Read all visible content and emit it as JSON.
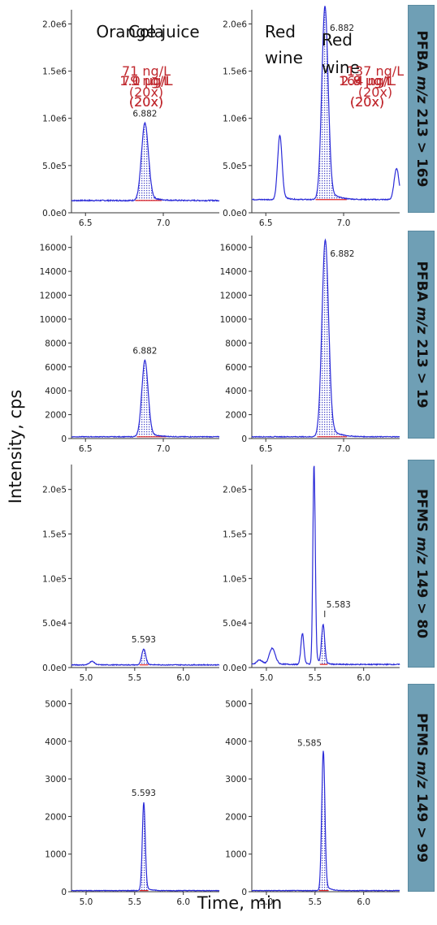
{
  "figure": {
    "y_label": "Intensity, cps",
    "x_label": "Time, min",
    "row_labels": [
      {
        "analyte": "PFBA",
        "mz": "m/z",
        "transition": "213 > 169"
      },
      {
        "analyte": "PFBA",
        "mz": "m/z",
        "transition": "213 > 19"
      },
      {
        "analyte": "PFMS",
        "mz": "m/z",
        "transition": "149 > 80"
      },
      {
        "analyte": "PFMS",
        "mz": "m/z",
        "transition": "149 > 99"
      }
    ],
    "colors": {
      "trace": "#2b2bd8",
      "fill": "#6b6bd0",
      "baseline": "#e02020",
      "annotation": "#c0282e",
      "band": "#6f9fb5"
    }
  },
  "chart_data": [
    {
      "type": "line",
      "sample": "Cola",
      "concentration": "1.0 µg/L",
      "dilution": "(20x)",
      "peak_label": "6.882",
      "xlim": [
        6.41,
        7.36
      ],
      "ylim": [
        0,
        2150000
      ],
      "yticks": [
        {
          "v": 0,
          "label": "0.0e0"
        },
        {
          "v": 500000,
          "label": "5.0e5"
        },
        {
          "v": 1000000,
          "label": "1.0e6"
        },
        {
          "v": 1500000,
          "label": "1.5e6"
        },
        {
          "v": 2000000,
          "label": "2.0e6"
        }
      ],
      "xticks": [
        {
          "v": 6.5,
          "label": "6.5"
        },
        {
          "v": 7.0,
          "label": "7.0"
        }
      ],
      "baseline": 130000,
      "noise": 12000,
      "peaks": [
        {
          "rt": 6.882,
          "height": 820000,
          "width": 0.022
        }
      ],
      "integration": [
        6.82,
        6.99
      ]
    },
    {
      "type": "line",
      "sample": "Red wine",
      "concentration": "2.9 µg/L",
      "dilution": "(20x)",
      "peak_label": "6.882",
      "xlim": [
        6.41,
        7.36
      ],
      "ylim": [
        0,
        2150000
      ],
      "yticks": [
        {
          "v": 0,
          "label": "0.0e0"
        },
        {
          "v": 500000,
          "label": "5.0e5"
        },
        {
          "v": 1000000,
          "label": "1.0e6"
        },
        {
          "v": 1500000,
          "label": "1.5e6"
        },
        {
          "v": 2000000,
          "label": "2.0e6"
        }
      ],
      "xticks": [
        {
          "v": 6.5,
          "label": "6.5"
        },
        {
          "v": 7.0,
          "label": "7.0"
        }
      ],
      "baseline": 140000,
      "noise": 10000,
      "peaks": [
        {
          "rt": 6.88,
          "height": 2050000,
          "width": 0.02
        },
        {
          "rt": 6.59,
          "height": 680000,
          "width": 0.014
        },
        {
          "rt": 7.34,
          "height": 330000,
          "width": 0.015
        }
      ],
      "integration": [
        6.82,
        7.02
      ]
    },
    {
      "type": "line",
      "concentration": "1.1 µg/L",
      "dilution": "(20x)",
      "peak_label": "6.882",
      "xlim": [
        6.41,
        7.36
      ],
      "ylim": [
        0,
        17000
      ],
      "yticks": [
        {
          "v": 0,
          "label": "0"
        },
        {
          "v": 2000,
          "label": "2000"
        },
        {
          "v": 4000,
          "label": "4000"
        },
        {
          "v": 6000,
          "label": "6000"
        },
        {
          "v": 8000,
          "label": "8000"
        },
        {
          "v": 10000,
          "label": "10000"
        },
        {
          "v": 12000,
          "label": "12000"
        },
        {
          "v": 14000,
          "label": "14000"
        },
        {
          "v": 16000,
          "label": "16000"
        }
      ],
      "xticks": [
        {
          "v": 6.5,
          "label": "6.5"
        },
        {
          "v": 7.0,
          "label": "7.0"
        }
      ],
      "baseline": 150,
      "noise": 60,
      "peaks": [
        {
          "rt": 6.882,
          "height": 6400,
          "width": 0.02
        }
      ],
      "integration": [
        6.83,
        7.02
      ]
    },
    {
      "type": "line",
      "concentration": "2.8 µg/L",
      "dilution": "(20x)",
      "peak_label": "6.882",
      "xlim": [
        6.41,
        7.36
      ],
      "ylim": [
        0,
        17000
      ],
      "yticks": [
        {
          "v": 0,
          "label": "0"
        },
        {
          "v": 2000,
          "label": "2000"
        },
        {
          "v": 4000,
          "label": "4000"
        },
        {
          "v": 6000,
          "label": "6000"
        },
        {
          "v": 8000,
          "label": "8000"
        },
        {
          "v": 10000,
          "label": "10000"
        },
        {
          "v": 12000,
          "label": "12000"
        },
        {
          "v": 14000,
          "label": "14000"
        },
        {
          "v": 16000,
          "label": "16000"
        }
      ],
      "xticks": [
        {
          "v": 6.5,
          "label": "6.5"
        },
        {
          "v": 7.0,
          "label": "7.0"
        }
      ],
      "baseline": 150,
      "noise": 60,
      "peaks": [
        {
          "rt": 6.882,
          "height": 16500,
          "width": 0.021
        }
      ],
      "integration": [
        6.83,
        7.02
      ]
    },
    {
      "type": "line",
      "sample": "Orange juice",
      "concentration": "79 ng/L",
      "dilution": "(20x)",
      "peak_label": "5.593",
      "xlim": [
        4.85,
        6.37
      ],
      "ylim": [
        0,
        228000
      ],
      "yticks": [
        {
          "v": 0,
          "label": "0.0e0"
        },
        {
          "v": 50000,
          "label": "5.0e4"
        },
        {
          "v": 100000,
          "label": "1.0e5"
        },
        {
          "v": 150000,
          "label": "1.5e5"
        },
        {
          "v": 200000,
          "label": "2.0e5"
        }
      ],
      "xticks": [
        {
          "v": 5.0,
          "label": "5.0"
        },
        {
          "v": 5.5,
          "label": "5.5"
        },
        {
          "v": 6.0,
          "label": "6.0"
        }
      ],
      "baseline": 3000,
      "noise": 900,
      "peaks": [
        {
          "rt": 5.593,
          "height": 18000,
          "width": 0.02
        },
        {
          "rt": 5.06,
          "height": 4000,
          "width": 0.025
        }
      ],
      "integration": [
        5.55,
        5.64
      ]
    },
    {
      "type": "line",
      "sample": "Red wine",
      "concentration": "164 ng/L",
      "dilution": "(20x)",
      "peak_label": "5.583",
      "xlim": [
        4.85,
        6.37
      ],
      "ylim": [
        0,
        228000
      ],
      "yticks": [
        {
          "v": 0,
          "label": "0.0e0"
        },
        {
          "v": 50000,
          "label": "5.0e4"
        },
        {
          "v": 100000,
          "label": "1.0e5"
        },
        {
          "v": 150000,
          "label": "1.5e5"
        },
        {
          "v": 200000,
          "label": "2.0e5"
        }
      ],
      "xticks": [
        {
          "v": 5.0,
          "label": "5.0"
        },
        {
          "v": 5.5,
          "label": "5.5"
        },
        {
          "v": 6.0,
          "label": "6.0"
        }
      ],
      "baseline": 3500,
      "noise": 1100,
      "peaks": [
        {
          "rt": 5.49,
          "height": 225000,
          "width": 0.012
        },
        {
          "rt": 5.583,
          "height": 44000,
          "width": 0.016
        },
        {
          "rt": 5.37,
          "height": 35000,
          "width": 0.015
        },
        {
          "rt": 5.06,
          "height": 18000,
          "width": 0.03
        },
        {
          "rt": 4.93,
          "height": 5000,
          "width": 0.03
        }
      ],
      "integration": [
        5.55,
        5.63
      ]
    },
    {
      "type": "line",
      "concentration": "71 ng/L",
      "dilution": "(20x)",
      "peak_label": "5.593",
      "xlim": [
        4.85,
        6.37
      ],
      "ylim": [
        0,
        5400
      ],
      "yticks": [
        {
          "v": 0,
          "label": "0"
        },
        {
          "v": 1000,
          "label": "1000"
        },
        {
          "v": 2000,
          "label": "2000"
        },
        {
          "v": 3000,
          "label": "3000"
        },
        {
          "v": 4000,
          "label": "4000"
        },
        {
          "v": 5000,
          "label": "5000"
        }
      ],
      "xticks": [
        {
          "v": 5.0,
          "label": "5.0"
        },
        {
          "v": 5.5,
          "label": "5.5"
        },
        {
          "v": 6.0,
          "label": "6.0"
        }
      ],
      "baseline": 30,
      "noise": 15,
      "peaks": [
        {
          "rt": 5.593,
          "height": 2350,
          "width": 0.015
        }
      ],
      "integration": [
        5.55,
        5.64
      ]
    },
    {
      "type": "line",
      "concentration": "137 ng/L",
      "dilution": "(20x)",
      "peak_label": "5.585",
      "xlim": [
        4.85,
        6.37
      ],
      "ylim": [
        0,
        5400
      ],
      "yticks": [
        {
          "v": 0,
          "label": "0"
        },
        {
          "v": 1000,
          "label": "1000"
        },
        {
          "v": 2000,
          "label": "2000"
        },
        {
          "v": 3000,
          "label": "3000"
        },
        {
          "v": 4000,
          "label": "4000"
        },
        {
          "v": 5000,
          "label": "5000"
        }
      ],
      "xticks": [
        {
          "v": 5.0,
          "label": "5.0"
        },
        {
          "v": 5.5,
          "label": "5.5"
        },
        {
          "v": 6.0,
          "label": "6.0"
        }
      ],
      "baseline": 30,
      "noise": 15,
      "peaks": [
        {
          "rt": 5.585,
          "height": 3720,
          "width": 0.016
        }
      ],
      "integration": [
        5.54,
        5.64
      ]
    }
  ]
}
